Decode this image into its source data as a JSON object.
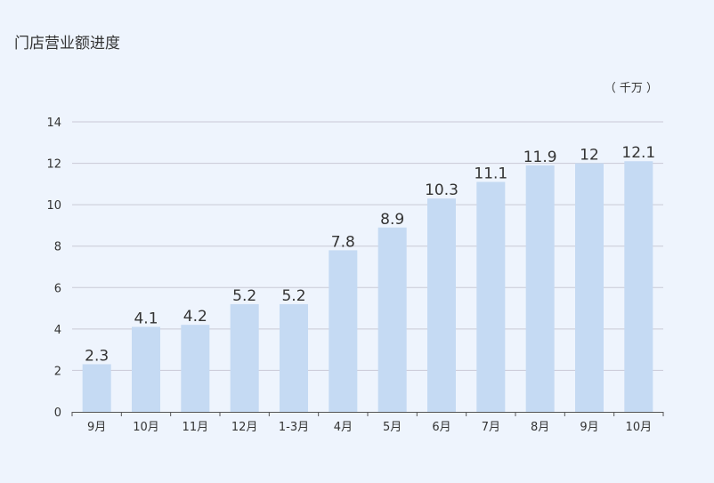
{
  "chart_data": {
    "type": "bar",
    "title": "门店营业额进度",
    "unit_label": "（ 千万 ）",
    "categories": [
      "9月",
      "10月",
      "11月",
      "12月",
      "1-3月",
      "4月",
      "5月",
      "6月",
      "7月",
      "8月",
      "9月",
      "10月"
    ],
    "values": [
      2.3,
      4.1,
      4.2,
      5.2,
      5.2,
      7.8,
      8.9,
      10.3,
      11.1,
      11.9,
      12,
      12.1
    ],
    "value_labels": [
      "2.3",
      "4.1",
      "4.2",
      "5.2",
      "5.2",
      "7.8",
      "8.9",
      "10.3",
      "11.1",
      "11.9",
      "12",
      "12.1"
    ],
    "yticks": [
      "0",
      "2",
      "4",
      "6",
      "8",
      "10",
      "12",
      "14"
    ],
    "ylim": [
      0,
      14
    ],
    "grid": true,
    "bar_color": "#c5daf3",
    "grid_color": "#c9c9d6",
    "axis_color": "#555555"
  }
}
